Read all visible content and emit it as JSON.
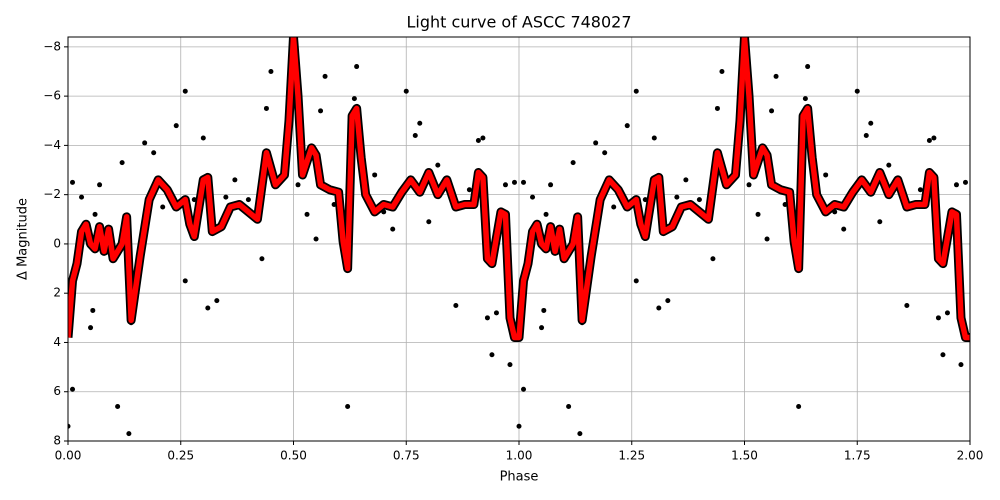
{
  "chart_data": {
    "type": "scatter-line",
    "title": "Light curve of ASCC 748027",
    "x_label": "Phase",
    "y_label": "Δ Magnitude",
    "xlim": [
      0,
      2
    ],
    "ylim": [
      8,
      -8.4
    ],
    "xticks": [
      {
        "value": 0,
        "label": "0.00"
      },
      {
        "value": 0.25,
        "label": "0.25"
      },
      {
        "value": 0.5,
        "label": "0.50"
      },
      {
        "value": 0.75,
        "label": "0.75"
      },
      {
        "value": 1,
        "label": "1.00"
      },
      {
        "value": 1.25,
        "label": "1.25"
      },
      {
        "value": 1.5,
        "label": "1.50"
      },
      {
        "value": 1.75,
        "label": "1.75"
      },
      {
        "value": 2,
        "label": "2.00"
      }
    ],
    "yticks": [
      {
        "value": -8,
        "label": "−8"
      },
      {
        "value": -6,
        "label": "−6"
      },
      {
        "value": -4,
        "label": "−4"
      },
      {
        "value": -2,
        "label": "−2"
      },
      0,
      2,
      4,
      6,
      8
    ],
    "grid": true,
    "scatter": {
      "color": "#000000",
      "x": [
        0.0,
        0.01,
        0.01,
        0.03,
        0.05,
        0.055,
        0.07,
        0.09,
        0.11,
        0.12,
        0.135,
        0.14,
        0.16,
        0.17,
        0.19,
        0.21,
        0.23,
        0.24,
        0.26,
        0.26,
        0.28,
        0.3,
        0.31,
        0.33,
        0.35,
        0.37,
        0.4,
        0.43,
        0.44,
        0.45,
        0.47,
        0.49,
        0.51,
        0.53,
        0.56,
        0.57,
        0.59,
        0.62,
        0.635,
        0.64,
        0.66,
        0.7,
        0.72,
        0.75,
        0.77,
        0.78,
        0.8,
        0.84,
        0.86,
        0.89,
        0.91,
        0.92,
        0.93,
        0.94,
        0.95,
        0.97,
        0.98,
        0.99,
        0.06,
        0.35,
        0.55,
        0.68,
        0.82,
        1.0,
        1.01,
        1.01,
        1.03,
        1.05,
        1.055,
        1.07,
        1.09,
        1.11,
        1.12,
        1.135,
        1.14,
        1.16,
        1.17,
        1.19,
        1.21,
        1.23,
        1.24,
        1.26,
        1.26,
        1.28,
        1.3,
        1.31,
        1.33,
        1.35,
        1.37,
        1.4,
        1.43,
        1.44,
        1.45,
        1.47,
        1.49,
        1.51,
        1.53,
        1.56,
        1.57,
        1.59,
        1.62,
        1.635,
        1.64,
        1.66,
        1.7,
        1.72,
        1.75,
        1.77,
        1.78,
        1.8,
        1.84,
        1.86,
        1.89,
        1.91,
        1.92,
        1.93,
        1.94,
        1.95,
        1.97,
        1.98,
        1.99,
        1.06,
        1.35,
        1.55,
        1.68,
        1.82
      ],
      "y": [
        7.4,
        5.9,
        -2.5,
        -1.9,
        3.4,
        2.7,
        -2.4,
        -0.2,
        6.6,
        -3.3,
        7.7,
        3.2,
        0.7,
        -4.1,
        -3.7,
        -1.5,
        -1.9,
        -4.8,
        -6.2,
        1.5,
        -1.8,
        -4.3,
        2.6,
        2.3,
        -1.1,
        -2.6,
        -1.8,
        0.6,
        -5.5,
        -7.0,
        -2.6,
        -6.3,
        -2.4,
        -1.2,
        -5.4,
        -6.8,
        -1.6,
        6.6,
        -5.9,
        -7.2,
        -2.4,
        -1.3,
        -0.6,
        -6.2,
        -4.4,
        -4.9,
        -0.9,
        -2.5,
        2.5,
        -2.2,
        -4.2,
        -4.3,
        3.0,
        4.5,
        2.8,
        -2.4,
        4.9,
        -2.5,
        -1.2,
        -1.9,
        -0.2,
        -2.8,
        -3.2,
        7.4,
        5.9,
        -2.5,
        -1.9,
        3.4,
        2.7,
        -2.4,
        -0.2,
        6.6,
        -3.3,
        7.7,
        3.2,
        0.7,
        -4.1,
        -3.7,
        -1.5,
        -1.9,
        -4.8,
        -6.2,
        1.5,
        -1.8,
        -4.3,
        2.6,
        2.3,
        -1.1,
        -2.6,
        -1.8,
        0.6,
        -5.5,
        -7.0,
        -2.6,
        -6.3,
        -2.4,
        -1.2,
        -5.4,
        -6.8,
        -1.6,
        6.6,
        -5.9,
        -7.2,
        -2.4,
        -1.3,
        -0.6,
        -6.2,
        -4.4,
        -4.9,
        -0.9,
        -2.5,
        2.5,
        -2.2,
        -4.2,
        -4.3,
        3.0,
        4.5,
        2.8,
        -2.4,
        4.9,
        -2.5,
        -1.2,
        -1.9,
        -0.2,
        -2.8,
        -3.2
      ]
    },
    "line": {
      "color": "#ff0000",
      "edgecolor": "#000000",
      "x": [
        0.0,
        0.01,
        0.02,
        0.03,
        0.04,
        0.05,
        0.06,
        0.07,
        0.08,
        0.09,
        0.1,
        0.11,
        0.12,
        0.13,
        0.14,
        0.16,
        0.18,
        0.2,
        0.22,
        0.24,
        0.26,
        0.27,
        0.28,
        0.3,
        0.31,
        0.32,
        0.34,
        0.36,
        0.38,
        0.4,
        0.42,
        0.44,
        0.46,
        0.48,
        0.49,
        0.5,
        0.51,
        0.52,
        0.54,
        0.55,
        0.56,
        0.58,
        0.6,
        0.61,
        0.62,
        0.63,
        0.64,
        0.65,
        0.66,
        0.68,
        0.7,
        0.72,
        0.74,
        0.76,
        0.78,
        0.8,
        0.82,
        0.84,
        0.86,
        0.88,
        0.9,
        0.91,
        0.92,
        0.93,
        0.94,
        0.96,
        0.97,
        0.98,
        0.99,
        1.0,
        1.01,
        1.02,
        1.03,
        1.04,
        1.05,
        1.06,
        1.07,
        1.08,
        1.09,
        1.1,
        1.11,
        1.12,
        1.13,
        1.14,
        1.16,
        1.18,
        1.2,
        1.22,
        1.24,
        1.26,
        1.27,
        1.28,
        1.3,
        1.31,
        1.32,
        1.34,
        1.36,
        1.38,
        1.4,
        1.42,
        1.44,
        1.46,
        1.48,
        1.49,
        1.5,
        1.51,
        1.52,
        1.54,
        1.55,
        1.56,
        1.58,
        1.6,
        1.61,
        1.62,
        1.63,
        1.64,
        1.65,
        1.66,
        1.68,
        1.7,
        1.72,
        1.74,
        1.76,
        1.78,
        1.8,
        1.82,
        1.84,
        1.86,
        1.88,
        1.9,
        1.91,
        1.92,
        1.93,
        1.94,
        1.96,
        1.97,
        1.98,
        1.99,
        2.0
      ],
      "y": [
        3.8,
        1.5,
        0.8,
        -0.5,
        -0.8,
        0,
        0.2,
        -0.7,
        0.3,
        -0.6,
        0.6,
        0.3,
        0,
        -1.1,
        3.1,
        0.5,
        -1.8,
        -2.6,
        -2.2,
        -1.5,
        -1.8,
        -0.8,
        -0.3,
        -2.6,
        -2.7,
        -0.5,
        -0.7,
        -1.5,
        -1.6,
        -1.3,
        -1.0,
        -3.7,
        -2.4,
        -2.8,
        -5,
        -8.4,
        -6,
        -2.8,
        -3.9,
        -3.6,
        -2.4,
        -2.2,
        -2.1,
        -0.1,
        1.0,
        -5.2,
        -5.5,
        -3.5,
        -2.0,
        -1.3,
        -1.6,
        -1.5,
        -2.1,
        -2.6,
        -2.1,
        -2.9,
        -2.0,
        -2.6,
        -1.5,
        -1.6,
        -1.6,
        -2.9,
        -2.7,
        0.6,
        0.8,
        -1.3,
        -1.2,
        3.0,
        3.8,
        3.8,
        1.5,
        0.8,
        -0.5,
        -0.8,
        0,
        0.2,
        -0.7,
        0.3,
        -0.6,
        0.6,
        0.3,
        0,
        -1.1,
        3.1,
        0.5,
        -1.8,
        -2.6,
        -2.2,
        -1.5,
        -1.8,
        -0.8,
        -0.3,
        -2.6,
        -2.7,
        -0.5,
        -0.7,
        -1.5,
        -1.6,
        -1.3,
        -1.0,
        -3.7,
        -2.4,
        -2.8,
        -5,
        -8.4,
        -6,
        -2.8,
        -3.9,
        -3.6,
        -2.4,
        -2.2,
        -2.1,
        -0.1,
        1.0,
        -5.2,
        -5.5,
        -3.5,
        -2.0,
        -1.3,
        -1.6,
        -1.5,
        -2.1,
        -2.6,
        -2.1,
        -2.9,
        -2.0,
        -2.6,
        -1.5,
        -1.6,
        -1.6,
        -2.9,
        -2.7,
        0.6,
        0.8,
        -1.3,
        -1.2,
        3.0,
        3.8,
        3.8
      ]
    }
  }
}
